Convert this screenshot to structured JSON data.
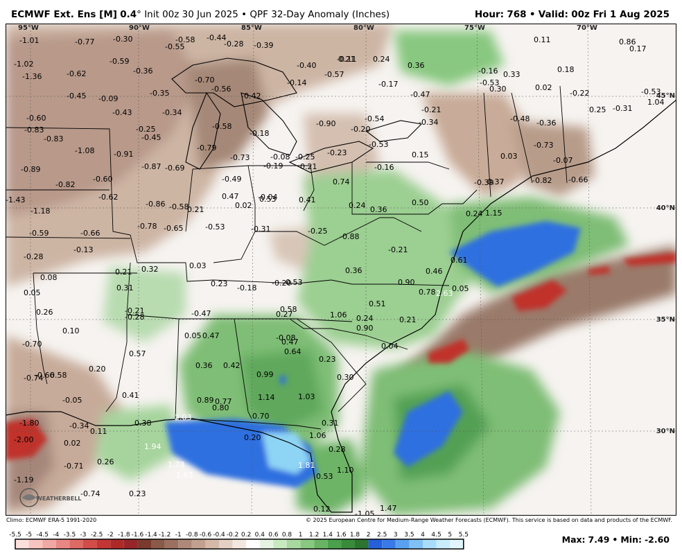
{
  "header": {
    "model": "ECMWF Ext. Ens [M]",
    "version": "0.4",
    "degree_symbol": "°",
    "init": "Init 00z 30 Jun 2025",
    "bullet": "•",
    "product": "QPF 32-Day Anomaly (Inches)",
    "hour_label": "Hour:",
    "hour_value": "768",
    "valid_label": "Valid:",
    "valid_value": "00z Fri 1 Aug 2025"
  },
  "credits": {
    "climo": "Climo: ECMWF ERA-5 1991-2020",
    "copyright": "© 2025 European Centre for Medium-Range Weather Forecasts (ECMWF). This service is based on data and products of the ECMWF."
  },
  "logo_text": "WEATHERBELL",
  "extremes": {
    "max_label": "Max:",
    "max_value": "7.49",
    "sep": "•",
    "min_label": "Min:",
    "min_value": "-2.60"
  },
  "longitude_labels": [
    "95°W",
    "90°W",
    "85°W",
    "80°W",
    "75°W",
    "70°W"
  ],
  "latitude_labels": [
    "45°N",
    "40°N",
    "35°N",
    "30°N"
  ],
  "colorbar": {
    "ticks": [
      "-5.5",
      "-5",
      "-4.5",
      "-4",
      "-3.5",
      "-3",
      "-2.5",
      "-2",
      "-1.8",
      "-1.6",
      "-1.4",
      "-1.2",
      "-1",
      "-0.8",
      "-0.6",
      "-0.4",
      "-0.2",
      "0.2",
      "0.4",
      "0.6",
      "0.8",
      "1",
      "1.2",
      "1.4",
      "1.6",
      "1.8",
      "2",
      "2.5",
      "3",
      "3.5",
      "4",
      "4.5",
      "5",
      "5.5"
    ],
    "colors": [
      "#fde0dc",
      "#f8c4c0",
      "#f0a8a4",
      "#e88884",
      "#de6a66",
      "#d24c4a",
      "#c23634",
      "#ae2a28",
      "#96262a",
      "#7a3a30",
      "#8a5a48",
      "#9c7060",
      "#ae8878",
      "#c2a090",
      "#d4b8a8",
      "#e4d0c4",
      "#f2e8e0",
      "#ffffff",
      "#e6f3e2",
      "#c8e8c0",
      "#a8d8a0",
      "#88c880",
      "#68b464",
      "#4aa04c",
      "#3a8a3c",
      "#2c7430",
      "#2560d8",
      "#3a7ae8",
      "#5aa0f0",
      "#80c0f4",
      "#a8dcf8",
      "#c8ecfa",
      "#e0f6fc"
    ]
  },
  "anomaly_values": [
    "-1.01",
    "-0.77",
    "-0.30",
    "-0.58",
    "-0.44",
    "-0.39",
    "-1.02",
    "-0.59",
    "-0.55",
    "-0.28",
    "-1.36",
    "-0.62",
    "-0.36",
    "-0.40",
    "-0.11",
    "-0.45",
    "-0.09",
    "-0.35",
    "-0.70",
    "-0.56",
    "-0.42",
    "-0.57",
    "-0.14",
    "-0.60",
    "-0.43",
    "-0.34",
    "-0.58",
    "-0.18",
    "-0.90",
    "-0.20",
    "-0.54",
    "-0.83",
    "-0.25",
    "-0.83",
    "-0.45",
    "-0.79",
    "-0.73",
    "-0.08",
    "-0.25",
    "-0.23",
    "-0.53",
    "-1.08",
    "-0.91",
    "-0.87",
    "-0.69",
    "-0.19",
    "0.21",
    "-0.89",
    "-0.60",
    "-0.49",
    "-0.82",
    "-0.62",
    "-0.04",
    "0.41",
    "-1.43",
    "-0.86",
    "-0.58",
    "0.02",
    "-1.18",
    "-0.78",
    "-0.65",
    "-0.53",
    "-0.31",
    "-0.25",
    "-0.59",
    "-0.66",
    "-0.88",
    "-0.13",
    "-0.28",
    "0.03",
    "0.21",
    "0.32",
    "0.08",
    "0.31",
    "0.23",
    "-0.18",
    "-0.20",
    "-0.53",
    "0.05",
    "0.26",
    "-0.21",
    "-0.28",
    "-0.47",
    "0.10",
    "0.05",
    "0.47",
    "-0.70",
    "0.57",
    "0.36",
    "0.42",
    "-0.74",
    "-0.66",
    "0.58",
    "0.20",
    "0.41",
    "-0.05",
    "0.89",
    "0.77",
    "0.80",
    "-0.34",
    "0.11",
    "0.38",
    "2.03",
    "-1.80",
    "-2.00",
    "0.02",
    "1.94",
    "0.26",
    "-0.71",
    "1.78",
    "1.63",
    "-1.19",
    "-0.74",
    "0.23",
    "0.21",
    "0.47",
    "0.53",
    "0.36",
    "0.50",
    "0.74",
    "0.24",
    "-0.21",
    "0.36",
    "0.90",
    "0.51",
    "0.78",
    "0.46",
    "0.61",
    "2.63",
    "0.05",
    "0.58",
    "0.27",
    "1.06",
    "0.24",
    "0.90",
    "0.21",
    "0.04",
    "-0.08",
    "0.47",
    "0.64",
    "0.23",
    "0.99",
    "0.30",
    "1.14",
    "1.03",
    "0.70",
    "0.31",
    "0.20",
    "1.06",
    "0.28",
    "1.81",
    "0.53",
    "1.10",
    "0.12",
    "-1.05",
    "1.47",
    "0.21",
    "0.24",
    "0.36",
    "-0.17",
    "-0.47",
    "-0.16",
    "0.33",
    "-0.53",
    "0.30",
    "0.02",
    "-0.22",
    "0.18",
    "-0.21",
    "-0.34",
    "-0.48",
    "-0.36",
    "0.03",
    "-0.73",
    "0.15",
    "-0.16",
    "-0.07",
    "-0.82",
    "-0.66",
    "-0.39",
    "0.37",
    "0.24",
    "1.15",
    "0.25",
    "-0.31",
    "1.04",
    "0.86",
    "0.17",
    "-0.53",
    "0.11",
    "-0.33"
  ]
}
